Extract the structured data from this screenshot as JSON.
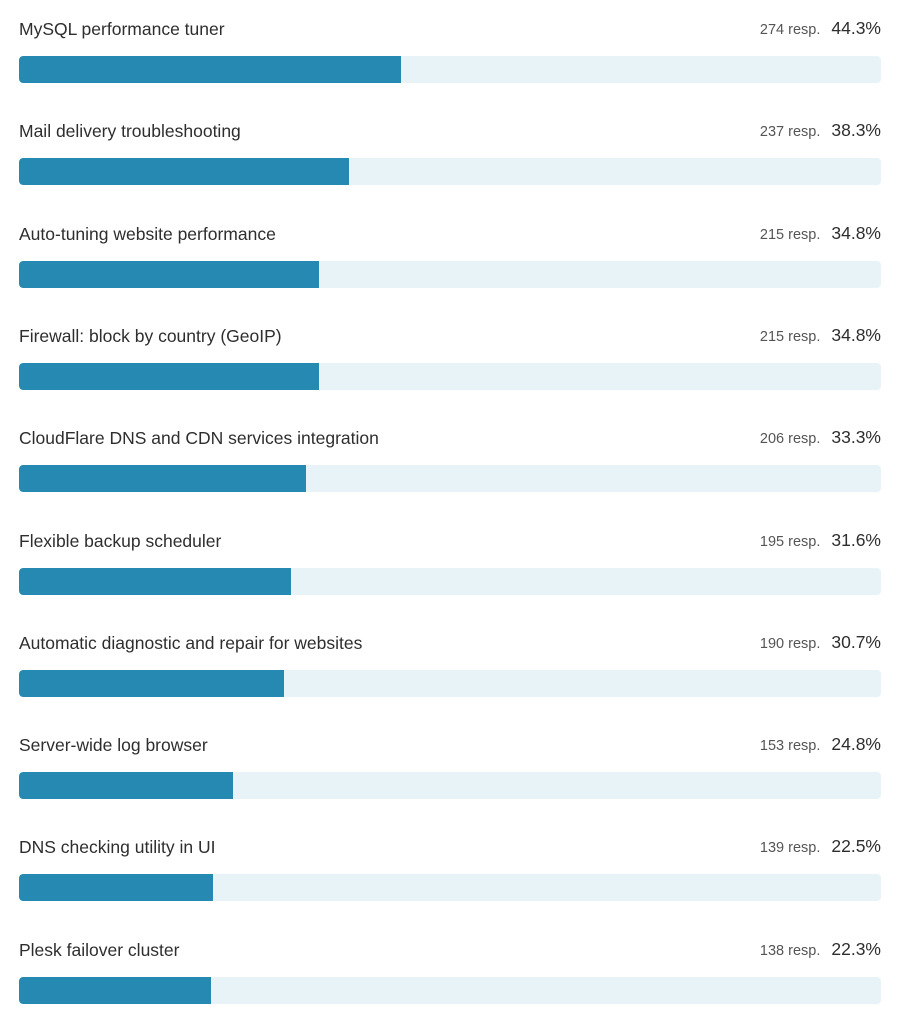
{
  "colors": {
    "bar_fill": "#2589b1",
    "bar_track": "#e7f3f7"
  },
  "chart_data": {
    "type": "bar",
    "orientation": "horizontal",
    "title": "",
    "xlabel": "",
    "ylabel": "",
    "xlim": [
      0,
      100
    ],
    "grid": false,
    "legend": "none",
    "resp_suffix": "resp.",
    "categories": [
      "MySQL performance tuner",
      "Mail delivery troubleshooting",
      "Auto-tuning website performance",
      "Firewall: block by country (GeoIP)",
      "CloudFlare DNS and CDN services integration",
      "Flexible backup scheduler",
      "Automatic diagnostic and repair for websites",
      "Server-wide log browser",
      "DNS checking utility in UI",
      "Plesk failover cluster"
    ],
    "responses": [
      274,
      237,
      215,
      215,
      206,
      195,
      190,
      153,
      139,
      138
    ],
    "values": [
      44.3,
      38.3,
      34.8,
      34.8,
      33.3,
      31.6,
      30.7,
      24.8,
      22.5,
      22.3
    ],
    "responses_text": [
      "274 resp.",
      "237 resp.",
      "215 resp.",
      "215 resp.",
      "206 resp.",
      "195 resp.",
      "190 resp.",
      "153 resp.",
      "139 resp.",
      "138 resp."
    ],
    "values_text": [
      "44.3%",
      "38.3%",
      "34.8%",
      "34.8%",
      "33.3%",
      "31.6%",
      "30.7%",
      "24.8%",
      "22.5%",
      "22.3%"
    ]
  }
}
